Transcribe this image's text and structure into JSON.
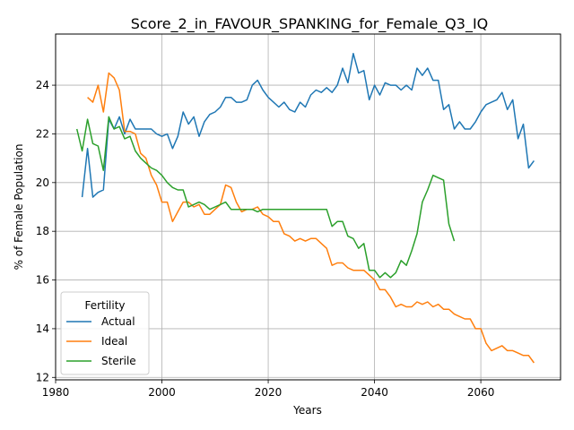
{
  "chart_data": {
    "type": "line",
    "title": "Score_2_in_FAVOUR_SPANKING_for_Female_Q3_IQ",
    "xlabel": "Years",
    "ylabel": "% of Female Population",
    "xlim": [
      1980,
      2075
    ],
    "ylim": [
      11.9,
      26.1
    ],
    "x_ticks": [
      1980,
      2000,
      2020,
      2040,
      2060
    ],
    "y_ticks": [
      12,
      14,
      16,
      18,
      20,
      22,
      24
    ],
    "grid": true,
    "legend": {
      "title": "Fertility",
      "position": "lower-left"
    },
    "series": [
      {
        "name": "Actual",
        "color": "#1f77b4",
        "x": [
          1985,
          1986,
          1987,
          1988,
          1989,
          1990,
          1991,
          1992,
          1993,
          1994,
          1995,
          1996,
          1997,
          1998,
          1999,
          2000,
          2001,
          2002,
          2003,
          2004,
          2005,
          2006,
          2007,
          2008,
          2009,
          2010,
          2011,
          2012,
          2013,
          2014,
          2015,
          2016,
          2017,
          2018,
          2019,
          2020,
          2021,
          2022,
          2023,
          2024,
          2025,
          2026,
          2027,
          2028,
          2029,
          2030,
          2031,
          2032,
          2033,
          2034,
          2035,
          2036,
          2037,
          2038,
          2039,
          2040,
          2041,
          2042,
          2043,
          2044,
          2045,
          2046,
          2047,
          2048,
          2049,
          2050,
          2051,
          2052,
          2053,
          2054,
          2055,
          2056,
          2057,
          2058,
          2059,
          2060,
          2061,
          2062,
          2063,
          2064,
          2065,
          2066,
          2067,
          2068,
          2069,
          2070
        ],
        "values": [
          19.4,
          21.4,
          19.4,
          19.6,
          19.7,
          22.6,
          22.2,
          22.7,
          22.0,
          22.6,
          22.2,
          22.2,
          22.2,
          22.2,
          22.0,
          21.9,
          22.0,
          21.4,
          21.9,
          22.9,
          22.4,
          22.7,
          21.9,
          22.5,
          22.8,
          22.9,
          23.1,
          23.5,
          23.5,
          23.3,
          23.3,
          23.4,
          24.0,
          24.2,
          23.8,
          23.5,
          23.3,
          23.1,
          23.3,
          23.0,
          22.9,
          23.3,
          23.1,
          23.6,
          23.8,
          23.7,
          23.9,
          23.7,
          24.0,
          24.7,
          24.1,
          25.3,
          24.5,
          24.6,
          23.4,
          24.0,
          23.6,
          24.1,
          24.0,
          24.0,
          23.8,
          24.0,
          23.8,
          24.7,
          24.4,
          24.7,
          24.2,
          24.2,
          23.0,
          23.2,
          22.2,
          22.5,
          22.2,
          22.2,
          22.5,
          22.9,
          23.2,
          23.3,
          23.4,
          23.7,
          23.0,
          23.4,
          21.8,
          22.4,
          20.6,
          20.9
        ]
      },
      {
        "name": "Ideal",
        "color": "#ff7f0e",
        "x": [
          1986,
          1987,
          1988,
          1989,
          1990,
          1991,
          1992,
          1993,
          1994,
          1995,
          1996,
          1997,
          1998,
          1999,
          2000,
          2001,
          2002,
          2003,
          2004,
          2005,
          2006,
          2007,
          2008,
          2009,
          2010,
          2011,
          2012,
          2013,
          2014,
          2015,
          2016,
          2017,
          2018,
          2019,
          2020,
          2021,
          2022,
          2023,
          2024,
          2025,
          2026,
          2027,
          2028,
          2029,
          2030,
          2031,
          2032,
          2033,
          2034,
          2035,
          2036,
          2037,
          2038,
          2039,
          2040,
          2041,
          2042,
          2043,
          2044,
          2045,
          2046,
          2047,
          2048,
          2049,
          2050,
          2051,
          2052,
          2053,
          2054,
          2055,
          2056,
          2057,
          2058,
          2059,
          2060,
          2061,
          2062,
          2063,
          2064,
          2065,
          2066,
          2067,
          2068,
          2069,
          2070
        ],
        "values": [
          23.5,
          23.3,
          24.0,
          22.9,
          24.5,
          24.3,
          23.8,
          22.1,
          22.1,
          22.0,
          21.2,
          21.0,
          20.3,
          19.9,
          19.2,
          19.2,
          18.4,
          18.8,
          19.2,
          19.2,
          19.0,
          19.1,
          18.7,
          18.7,
          18.9,
          19.1,
          19.9,
          19.8,
          19.2,
          18.8,
          18.9,
          18.9,
          19.0,
          18.7,
          18.6,
          18.4,
          18.4,
          17.9,
          17.8,
          17.6,
          17.7,
          17.6,
          17.7,
          17.7,
          17.5,
          17.3,
          16.6,
          16.7,
          16.7,
          16.5,
          16.4,
          16.4,
          16.4,
          16.2,
          16.0,
          15.6,
          15.6,
          15.3,
          14.9,
          15.0,
          14.9,
          14.9,
          15.1,
          15.0,
          15.1,
          14.9,
          15.0,
          14.8,
          14.8,
          14.6,
          14.5,
          14.4,
          14.4,
          14.0,
          14.0,
          13.4,
          13.1,
          13.2,
          13.3,
          13.1,
          13.1,
          13.0,
          12.9,
          12.9,
          12.6
        ]
      },
      {
        "name": "Sterile",
        "color": "#2ca02c",
        "x": [
          1984,
          1985,
          1986,
          1987,
          1988,
          1989,
          1990,
          1991,
          1992,
          1993,
          1994,
          1995,
          1996,
          1997,
          1998,
          1999,
          2000,
          2001,
          2002,
          2003,
          2004,
          2005,
          2006,
          2007,
          2008,
          2009,
          2010,
          2011,
          2012,
          2013,
          2014,
          2015,
          2016,
          2017,
          2018,
          2019,
          2020,
          2021,
          2022,
          2023,
          2024,
          2025,
          2026,
          2027,
          2028,
          2029,
          2030,
          2031,
          2032,
          2033,
          2034,
          2035,
          2036,
          2037,
          2038,
          2039,
          2040,
          2041,
          2042,
          2043,
          2044,
          2045,
          2046,
          2047,
          2048,
          2049,
          2050,
          2051,
          2052,
          2053,
          2054,
          2055
        ],
        "values": [
          22.2,
          21.3,
          22.6,
          21.6,
          21.5,
          20.5,
          22.7,
          22.2,
          22.3,
          21.8,
          21.9,
          21.3,
          21.0,
          20.8,
          20.6,
          20.5,
          20.3,
          20.0,
          19.8,
          19.7,
          19.7,
          19.0,
          19.1,
          19.2,
          19.1,
          18.9,
          19.0,
          19.1,
          19.2,
          18.9,
          18.9,
          18.9,
          18.9,
          18.9,
          18.8,
          18.9,
          18.9,
          18.9,
          18.9,
          18.9,
          18.9,
          18.9,
          18.9,
          18.9,
          18.9,
          18.9,
          18.9,
          18.9,
          18.2,
          18.4,
          18.4,
          17.8,
          17.7,
          17.3,
          17.5,
          16.4,
          16.4,
          16.1,
          16.3,
          16.1,
          16.3,
          16.8,
          16.6,
          17.2,
          17.9,
          19.2,
          19.7,
          20.3,
          20.2,
          20.1,
          18.3,
          17.6
        ]
      }
    ]
  }
}
